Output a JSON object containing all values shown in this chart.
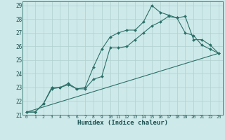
{
  "xlabel": "Humidex (Indice chaleur)",
  "bg_color": "#cee9e9",
  "grid_color": "#b0d0d0",
  "line_color": "#2a7068",
  "xlim": [
    -0.5,
    23.5
  ],
  "ylim": [
    21,
    29.3
  ],
  "xticks": [
    0,
    1,
    2,
    3,
    4,
    5,
    6,
    7,
    8,
    9,
    10,
    11,
    12,
    13,
    14,
    15,
    16,
    17,
    18,
    19,
    20,
    21,
    22,
    23
  ],
  "yticks": [
    21,
    22,
    23,
    24,
    25,
    26,
    27,
    28,
    29
  ],
  "line1_x": [
    0,
    1,
    2,
    3,
    4,
    5,
    6,
    7,
    8,
    9,
    10,
    11,
    12,
    13,
    14,
    15,
    16,
    17,
    18,
    19,
    20,
    21,
    22,
    23
  ],
  "line1_y": [
    21.2,
    21.2,
    21.8,
    22.9,
    23.0,
    23.3,
    22.9,
    23.0,
    24.5,
    25.8,
    26.7,
    27.0,
    27.2,
    27.2,
    27.8,
    29.0,
    28.5,
    28.3,
    28.1,
    28.2,
    26.5,
    26.5,
    26.1,
    25.5
  ],
  "line2_x": [
    0,
    1,
    2,
    3,
    4,
    5,
    6,
    7,
    8,
    9,
    10,
    11,
    12,
    13,
    14,
    15,
    16,
    17,
    18,
    19,
    20,
    21,
    22,
    23
  ],
  "line2_y": [
    21.2,
    21.2,
    21.8,
    23.0,
    23.0,
    23.2,
    22.9,
    22.9,
    23.6,
    23.8,
    25.9,
    25.9,
    26.0,
    26.5,
    27.0,
    27.5,
    27.8,
    28.2,
    28.1,
    27.0,
    26.8,
    26.1,
    25.8,
    25.5
  ],
  "line3_x": [
    0,
    23
  ],
  "line3_y": [
    21.2,
    25.5
  ]
}
